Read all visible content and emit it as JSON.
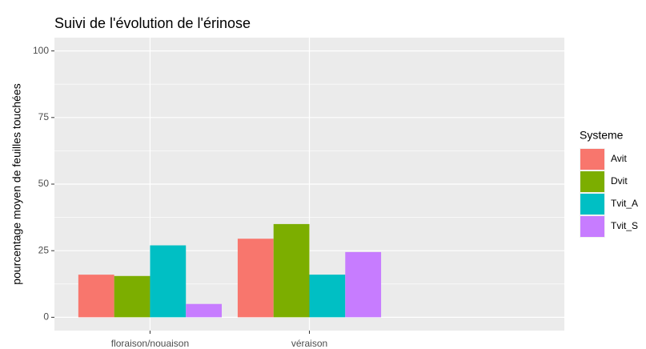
{
  "chart_data": {
    "type": "bar",
    "title": "Suivi de l'évolution de l'érinose",
    "y_label": "pourcentage moyen de feuilles touchées",
    "categories": [
      "floraison/nouaison",
      "véraison"
    ],
    "series": [
      {
        "name": "Avit",
        "color": "#F8766D",
        "values": [
          16,
          29.5
        ]
      },
      {
        "name": "Dvit",
        "color": "#7CAE00",
        "values": [
          15.5,
          35
        ]
      },
      {
        "name": "Tvit_A",
        "color": "#00BFC4",
        "values": [
          27,
          16
        ]
      },
      {
        "name": "Tvit_S",
        "color": "#C77CFF",
        "values": [
          5,
          24.5
        ]
      }
    ],
    "legend_title": "Systeme",
    "ylim": [
      -5,
      105
    ],
    "yticks": [
      0,
      25,
      50,
      75,
      100
    ],
    "grid": true,
    "legend": "right"
  }
}
